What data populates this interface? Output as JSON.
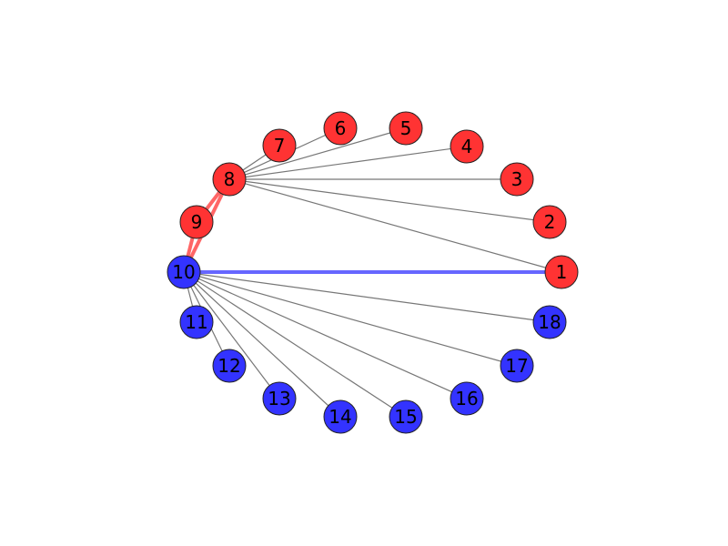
{
  "graph": {
    "colors": {
      "red_node": "#ff3333",
      "blue_node": "#3333ff",
      "edge_gray": "#777777",
      "node_stroke": "#222222"
    },
    "nodes": [
      {
        "id": "1",
        "group": "red"
      },
      {
        "id": "2",
        "group": "red"
      },
      {
        "id": "3",
        "group": "red"
      },
      {
        "id": "4",
        "group": "red"
      },
      {
        "id": "5",
        "group": "red"
      },
      {
        "id": "6",
        "group": "red"
      },
      {
        "id": "7",
        "group": "red"
      },
      {
        "id": "8",
        "group": "red"
      },
      {
        "id": "9",
        "group": "red"
      },
      {
        "id": "10",
        "group": "blue"
      },
      {
        "id": "11",
        "group": "blue"
      },
      {
        "id": "12",
        "group": "blue"
      },
      {
        "id": "13",
        "group": "blue"
      },
      {
        "id": "14",
        "group": "blue"
      },
      {
        "id": "15",
        "group": "blue"
      },
      {
        "id": "16",
        "group": "blue"
      },
      {
        "id": "17",
        "group": "blue"
      },
      {
        "id": "18",
        "group": "blue"
      }
    ],
    "edges": [
      {
        "source": "8",
        "target": "1",
        "style": "gray"
      },
      {
        "source": "8",
        "target": "2",
        "style": "gray"
      },
      {
        "source": "8",
        "target": "3",
        "style": "gray"
      },
      {
        "source": "8",
        "target": "4",
        "style": "gray"
      },
      {
        "source": "8",
        "target": "5",
        "style": "gray"
      },
      {
        "source": "8",
        "target": "6",
        "style": "gray"
      },
      {
        "source": "8",
        "target": "7",
        "style": "gray"
      },
      {
        "source": "8",
        "target": "9",
        "style": "red"
      },
      {
        "source": "9",
        "target": "10",
        "style": "red"
      },
      {
        "source": "8",
        "target": "10",
        "style": "red"
      },
      {
        "source": "10",
        "target": "1",
        "style": "blue"
      },
      {
        "source": "10",
        "target": "11",
        "style": "gray"
      },
      {
        "source": "10",
        "target": "12",
        "style": "gray"
      },
      {
        "source": "10",
        "target": "13",
        "style": "gray"
      },
      {
        "source": "10",
        "target": "14",
        "style": "gray"
      },
      {
        "source": "10",
        "target": "15",
        "style": "gray"
      },
      {
        "source": "10",
        "target": "16",
        "style": "gray"
      },
      {
        "source": "10",
        "target": "17",
        "style": "gray"
      },
      {
        "source": "10",
        "target": "18",
        "style": "gray"
      }
    ]
  }
}
